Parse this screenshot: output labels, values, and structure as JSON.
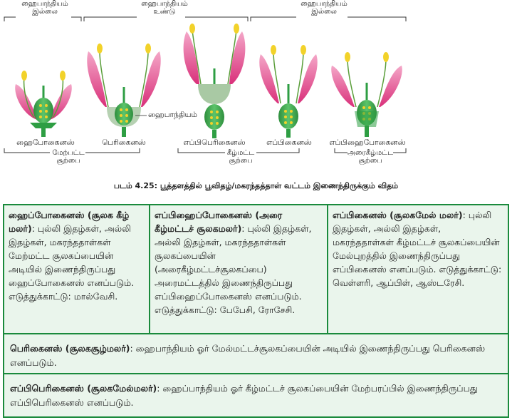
{
  "figure": {
    "bracket_labels": [
      {
        "line1": "ஹைபாந்தியம்",
        "line2": "இல்லை"
      },
      {
        "line1": "ஹைபாந்தியம்",
        "line2": "உண்டு"
      },
      {
        "line1": "ஹைபாந்தியம்",
        "line2": "இல்லை"
      }
    ],
    "hypanthium_callout": "ஹைபாந்தியம்",
    "flower_labels": [
      "ஹைபோகைனஸ்",
      "பெரிகைனஸ்",
      "எப்பிபெரிகைனஸ்",
      "எப்பிகைனஸ்",
      "எப்பிஹைபோகைனஸ்"
    ],
    "ovary_labels": [
      {
        "line1": "மேற்பட்ட",
        "line2": "சூற்பை"
      },
      {
        "line1": "கீழ்மட்ட",
        "line2": "சூற்பை"
      },
      {
        "line1": "அரைகீழ்மட்ட",
        "line2": "சூற்பை"
      }
    ],
    "caption": "படம் 4.25: பூத்தளத்தில் பூவிதழ்/மகரந்தத்தாள் வட்டம் இணைந்திருக்கும் விதம்",
    "colors": {
      "petal": "#e05a95",
      "petal_light": "#f6b6d2",
      "stem": "#2e9e43",
      "stamen": "#f2d22a",
      "ovary": "#3fae4f",
      "hypanthium": "#a9c9a4"
    }
  },
  "table": {
    "cell1": {
      "bold": "ஹைப்போகைனஸ் (சூலக கீழ் மலர்)",
      "text": ": புல்லி இதழ்கள், அல்லி இதழ்கள், மகரந்ததாள்கள் மேற்மட்ட சூலகப்பையின் அடியில் இணைந்திருப்பது ஹைப்போகைனஸ் எனப்படும். எடுத்துக்காட்டு: மால்வேசி."
    },
    "cell2": {
      "bold": "எப்பிஹைப்போகைனஸ் (அரை கீழ்மட்டச் சூலகமலர்)",
      "text": ": புல்லி இதழ்கள், அல்லி இதழ்கள், மகரந்ததாள்கள் சூலகப்பையின் (அரைகீழ்மட்டச்சூலகப்பை) அரைமட்டத்தில் இணைந்திருப்பது எப்பிஹைப்போகைனஸ் எனப்படும். எடுத்துக்காட்டு: பேபேசி, ரோசேசி."
    },
    "cell3": {
      "bold": "எப்பிகைனஸ் (சூலகமேல் மலர்)",
      "text": ": புல்லி இதழ்கள், அல்லி இதழ்கள், மகரந்ததாள்கள் கீழ்மட்டச் சூலகப்பையின் மேல்புறத்தில் இணைந்திருப்பது எப்பிகைனஸ் எனப்படும். எடுத்துக்காட்டு: வெள்ளரி, ஆப்பிள், ஆஸ்டரேசி."
    },
    "row2": {
      "bold": "பெரிகைனஸ் (சூலகசூழ்மலர்)",
      "text": ": ஹைபாந்தியம் ஓர் மேல்மட்டச்சூலகப்பையின் அடியில் இணைந்திருப்பது பெரிகைனஸ் எனப்படும்."
    },
    "row3": {
      "bold": "எப்பிபெரிகைனஸ் (சூலகமேல்மலர்)",
      "text": ":  ஹைப்பாந்தியம் ஓர் கீழ்மட்டச் சூலகப்பையின் மேற்பரப்பில் இணைந்திருப்பது எப்பிபெரிகைனஸ் எனப்படும்."
    }
  }
}
